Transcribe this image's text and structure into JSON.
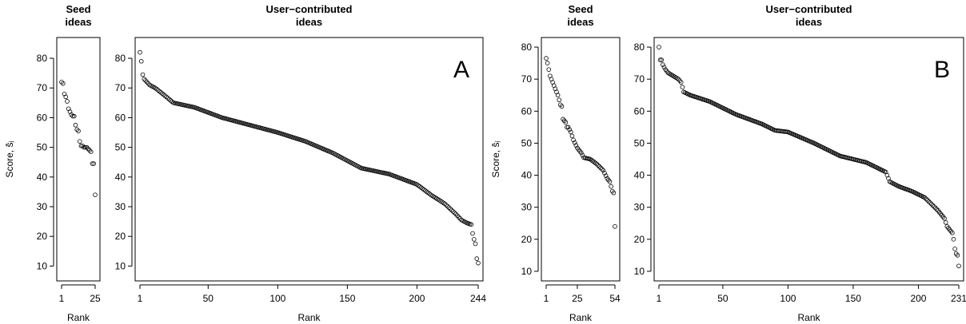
{
  "chart_data": [
    {
      "type": "scatter",
      "title": "Seed\nideas",
      "xlabel": "Rank",
      "ylabel": "Score, ŝ̂ⱼ",
      "x_range": [
        1,
        25
      ],
      "ylim": [
        5,
        87
      ],
      "xticks": [
        1,
        25
      ],
      "yticks": [
        10,
        20,
        30,
        40,
        50,
        60,
        70,
        80
      ],
      "values": [
        72,
        71.5,
        68,
        67,
        65.5,
        63,
        62,
        61,
        60.5,
        60.5,
        57.5,
        56,
        55.5,
        52,
        50.5,
        50.5,
        50,
        50,
        50,
        49.5,
        49,
        48.5,
        44.5,
        44.5,
        34
      ]
    },
    {
      "type": "scatter",
      "title": "User−contributed\nideas",
      "xlabel": "Rank",
      "ylabel": "",
      "annotation": "A",
      "x_range": [
        1,
        244
      ],
      "ylim": [
        5,
        87
      ],
      "xticks": [
        1,
        50,
        100,
        150,
        200,
        244
      ],
      "yticks": [
        10,
        20,
        30,
        40,
        50,
        60,
        70,
        80
      ],
      "anchors": [
        [
          1,
          82
        ],
        [
          2,
          79
        ],
        [
          3,
          74.5
        ],
        [
          4,
          73
        ],
        [
          6,
          72
        ],
        [
          8,
          71
        ],
        [
          12,
          70
        ],
        [
          20,
          67
        ],
        [
          25,
          65
        ],
        [
          40,
          63.5
        ],
        [
          60,
          60
        ],
        [
          80,
          57.5
        ],
        [
          100,
          55
        ],
        [
          120,
          52
        ],
        [
          140,
          48
        ],
        [
          160,
          43
        ],
        [
          180,
          41
        ],
        [
          200,
          37.5
        ],
        [
          210,
          34
        ],
        [
          220,
          31
        ],
        [
          228,
          27.5
        ],
        [
          232,
          25.5
        ],
        [
          236,
          24.5
        ],
        [
          239,
          24
        ],
        [
          240,
          21
        ],
        [
          241,
          19
        ],
        [
          242,
          17.5
        ],
        [
          243,
          12.5
        ],
        [
          244,
          11
        ],
        [
          244.6,
          8
        ]
      ]
    },
    {
      "type": "scatter",
      "title": "Seed\nideas",
      "xlabel": "Rank",
      "ylabel": "Score, ŝ̂ⱼ",
      "x_range": [
        1,
        54
      ],
      "ylim": [
        7,
        83
      ],
      "xticks": [
        1,
        25,
        54
      ],
      "yticks": [
        10,
        20,
        30,
        40,
        50,
        60,
        70,
        80
      ],
      "anchors": [
        [
          1,
          76.5
        ],
        [
          2,
          75
        ],
        [
          3,
          73
        ],
        [
          4,
          71
        ],
        [
          6,
          69
        ],
        [
          8,
          67
        ],
        [
          10,
          65
        ],
        [
          12,
          62
        ],
        [
          13,
          61.5
        ],
        [
          14,
          57.5
        ],
        [
          15,
          57
        ],
        [
          16,
          56.5
        ],
        [
          17,
          55
        ],
        [
          18,
          55
        ],
        [
          20,
          53.5
        ],
        [
          22,
          51
        ],
        [
          25,
          48.5
        ],
        [
          28,
          47
        ],
        [
          30,
          45.5
        ],
        [
          35,
          45
        ],
        [
          40,
          43.5
        ],
        [
          45,
          41.5
        ],
        [
          48,
          39
        ],
        [
          50,
          38
        ],
        [
          52,
          35
        ],
        [
          53,
          34.5
        ],
        [
          54,
          24
        ]
      ]
    },
    {
      "type": "scatter",
      "title": "User−contributed\nideas",
      "xlabel": "Rank",
      "ylabel": "",
      "annotation": "B",
      "x_range": [
        1,
        231
      ],
      "ylim": [
        7,
        83
      ],
      "xticks": [
        1,
        50,
        100,
        150,
        200,
        231
      ],
      "yticks": [
        10,
        20,
        30,
        40,
        50,
        60,
        70,
        80
      ],
      "anchors": [
        [
          1,
          80
        ],
        [
          2,
          76
        ],
        [
          3,
          76
        ],
        [
          4,
          74.5
        ],
        [
          6,
          73
        ],
        [
          8,
          72
        ],
        [
          12,
          71
        ],
        [
          16,
          70
        ],
        [
          18,
          69
        ],
        [
          20,
          66
        ],
        [
          25,
          65
        ],
        [
          40,
          63
        ],
        [
          60,
          59
        ],
        [
          80,
          56
        ],
        [
          90,
          54
        ],
        [
          100,
          53.5
        ],
        [
          120,
          50
        ],
        [
          140,
          46
        ],
        [
          160,
          44
        ],
        [
          170,
          42
        ],
        [
          175,
          41
        ],
        [
          178,
          38
        ],
        [
          185,
          36.5
        ],
        [
          195,
          35
        ],
        [
          205,
          33
        ],
        [
          210,
          31
        ],
        [
          215,
          29
        ],
        [
          220,
          26.5
        ],
        [
          222,
          24
        ],
        [
          224,
          23
        ],
        [
          226,
          22
        ],
        [
          227,
          20
        ],
        [
          228,
          17
        ],
        [
          229,
          15.5
        ],
        [
          230,
          15
        ],
        [
          230.6,
          13
        ],
        [
          231.2,
          11
        ],
        [
          231.6,
          10
        ]
      ]
    }
  ]
}
